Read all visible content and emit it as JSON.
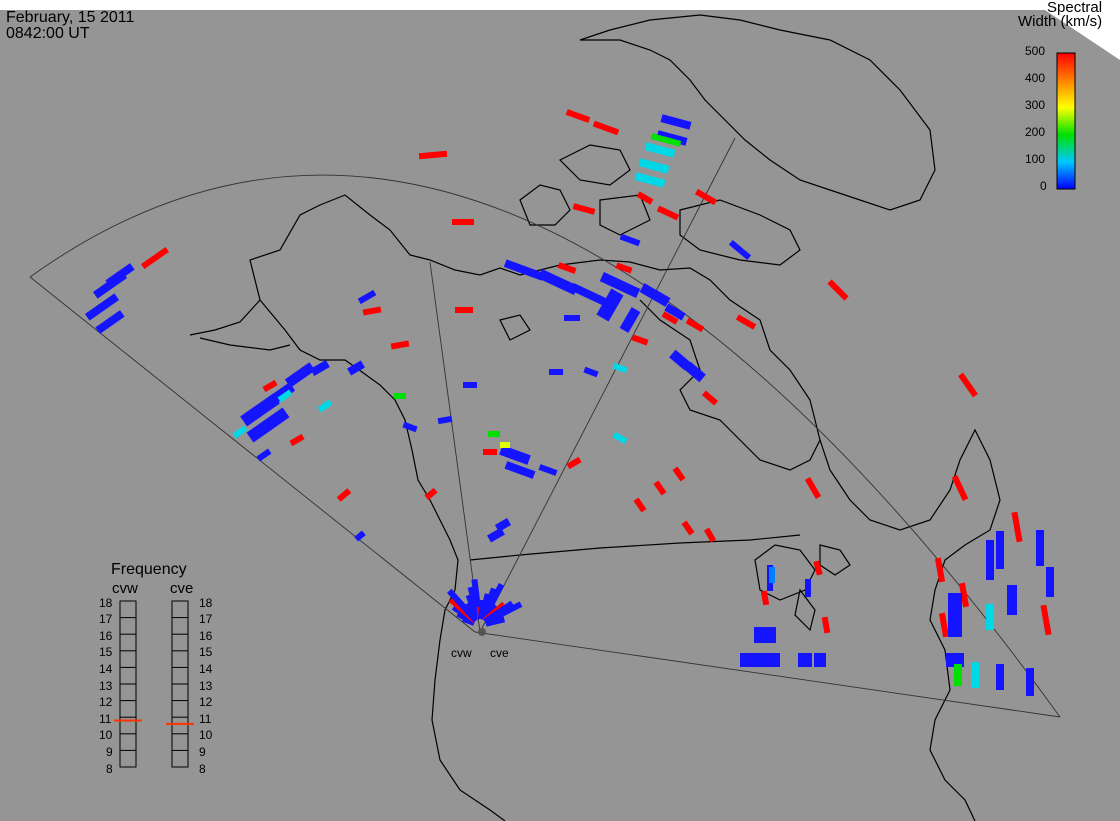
{
  "header": {
    "date": "February, 15 2011",
    "time": "0842:00 UT"
  },
  "colorbar": {
    "title_line1": "Spectral",
    "title_line2": "Width (km/s)",
    "ticks": [
      "500",
      "400",
      "300",
      "200",
      "100",
      "0"
    ]
  },
  "frequency": {
    "title": "Frequency",
    "radars": [
      {
        "name": "cvw",
        "value": 10.8
      },
      {
        "name": "cve",
        "value": 10.6
      }
    ],
    "scale": [
      "18",
      "17",
      "16",
      "15",
      "14",
      "13",
      "12",
      "11",
      "10",
      "9",
      "8"
    ],
    "range": [
      8,
      18
    ],
    "marker_color": "#ff3300"
  },
  "map_labels": {
    "radar_west": "cvw",
    "radar_east": "cve"
  },
  "colors": {
    "background": "#959595",
    "coast": "#000000",
    "fov": "#333333",
    "low_width": "#1414ff",
    "high_width": "#ff0000"
  }
}
